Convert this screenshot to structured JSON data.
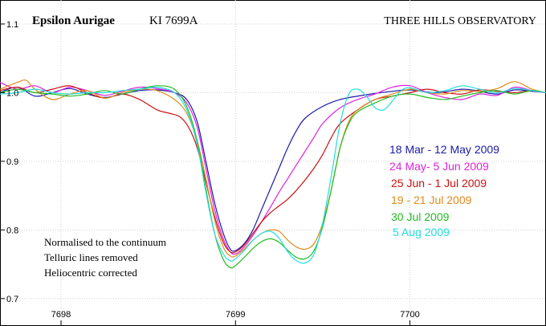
{
  "header": {
    "star": "Epsilon Aurigae",
    "line": "KI 7699A",
    "observatory": "THREE HILLS OBSERVATORY"
  },
  "notes": [
    "Normalised to the continuum",
    "Telluric lines removed",
    "Heliocentric corrected"
  ],
  "chart_data": {
    "type": "line",
    "title": "Epsilon Aurigae    KI 7699A",
    "xlim": [
      7697.65,
      7700.78
    ],
    "ylim": [
      0.66,
      1.135
    ],
    "x_ticks": [
      7698,
      7699,
      7700
    ],
    "y_ticks": [
      0.7,
      0.8,
      0.9,
      1.0,
      1.1
    ],
    "grid": true,
    "legend": "right",
    "series": [
      {
        "name": "18 Mar - 12 May  2009",
        "color": "#1a1aa8",
        "points": [
          [
            7697.65,
            1.0
          ],
          [
            7697.75,
            1.008
          ],
          [
            7697.85,
            0.995
          ],
          [
            7697.95,
            1.0
          ],
          [
            7698.05,
            1.006
          ],
          [
            7698.15,
            0.998
          ],
          [
            7698.25,
            0.993
          ],
          [
            7698.35,
            0.998
          ],
          [
            7698.45,
            1.003
          ],
          [
            7698.55,
            1.004
          ],
          [
            7698.65,
            1.0
          ],
          [
            7698.72,
            0.99
          ],
          [
            7698.78,
            0.958
          ],
          [
            7698.83,
            0.9
          ],
          [
            7698.88,
            0.84
          ],
          [
            7698.93,
            0.795
          ],
          [
            7698.97,
            0.772
          ],
          [
            7699.0,
            0.77
          ],
          [
            7699.05,
            0.78
          ],
          [
            7699.1,
            0.8
          ],
          [
            7699.15,
            0.83
          ],
          [
            7699.2,
            0.86
          ],
          [
            7699.25,
            0.89
          ],
          [
            7699.3,
            0.92
          ],
          [
            7699.35,
            0.945
          ],
          [
            7699.4,
            0.963
          ],
          [
            7699.5,
            0.98
          ],
          [
            7699.6,
            0.99
          ],
          [
            7699.75,
            0.997
          ],
          [
            7699.9,
            1.002
          ],
          [
            7700.0,
            1.004
          ],
          [
            7700.15,
            1.0
          ],
          [
            7700.3,
            1.005
          ],
          [
            7700.4,
            1.002
          ],
          [
            7700.5,
            0.998
          ],
          [
            7700.6,
            1.004
          ],
          [
            7700.7,
            1.002
          ],
          [
            7700.78,
            1.0
          ]
        ]
      },
      {
        "name": "24 May- 5 Jun 2009",
        "color": "#dd22dd",
        "points": [
          [
            7697.65,
            1.015
          ],
          [
            7697.75,
            1.005
          ],
          [
            7697.85,
            1.01
          ],
          [
            7697.95,
            1.0
          ],
          [
            7698.05,
            1.008
          ],
          [
            7698.15,
            1.003
          ],
          [
            7698.25,
            0.996
          ],
          [
            7698.35,
            1.002
          ],
          [
            7698.45,
            1.008
          ],
          [
            7698.55,
            1.006
          ],
          [
            7698.65,
            1.0
          ],
          [
            7698.72,
            0.985
          ],
          [
            7698.78,
            0.95
          ],
          [
            7698.83,
            0.89
          ],
          [
            7698.88,
            0.83
          ],
          [
            7698.93,
            0.787
          ],
          [
            7698.97,
            0.768
          ],
          [
            7699.0,
            0.765
          ],
          [
            7699.05,
            0.775
          ],
          [
            7699.1,
            0.792
          ],
          [
            7699.15,
            0.812
          ],
          [
            7699.2,
            0.833
          ],
          [
            7699.25,
            0.855
          ],
          [
            7699.3,
            0.875
          ],
          [
            7699.35,
            0.895
          ],
          [
            7699.4,
            0.915
          ],
          [
            7699.45,
            0.935
          ],
          [
            7699.5,
            0.955
          ],
          [
            7699.6,
            0.978
          ],
          [
            7699.7,
            0.99
          ],
          [
            7699.8,
            0.998
          ],
          [
            7699.9,
            1.008
          ],
          [
            7700.0,
            1.01
          ],
          [
            7700.1,
            1.0
          ],
          [
            7700.2,
            0.993
          ],
          [
            7700.3,
            0.99
          ],
          [
            7700.4,
            0.998
          ],
          [
            7700.5,
            0.996
          ],
          [
            7700.6,
            1.008
          ],
          [
            7700.7,
            1.003
          ],
          [
            7700.78,
            1.0
          ]
        ]
      },
      {
        "name": "25 Jun - 1 Jul 2009",
        "color": "#cc1111",
        "points": [
          [
            7697.65,
            1.003
          ],
          [
            7697.75,
            1.008
          ],
          [
            7697.85,
            1.0
          ],
          [
            7697.95,
            1.005
          ],
          [
            7698.05,
            1.01
          ],
          [
            7698.15,
            1.0
          ],
          [
            7698.25,
            0.992
          ],
          [
            7698.35,
            0.998
          ],
          [
            7698.45,
            0.99
          ],
          [
            7698.55,
            0.975
          ],
          [
            7698.62,
            0.97
          ],
          [
            7698.68,
            0.965
          ],
          [
            7698.73,
            0.95
          ],
          [
            7698.78,
            0.92
          ],
          [
            7698.83,
            0.87
          ],
          [
            7698.88,
            0.82
          ],
          [
            7698.93,
            0.782
          ],
          [
            7698.97,
            0.768
          ],
          [
            7699.0,
            0.768
          ],
          [
            7699.05,
            0.778
          ],
          [
            7699.1,
            0.795
          ],
          [
            7699.15,
            0.812
          ],
          [
            7699.2,
            0.825
          ],
          [
            7699.25,
            0.835
          ],
          [
            7699.3,
            0.845
          ],
          [
            7699.35,
            0.858
          ],
          [
            7699.4,
            0.873
          ],
          [
            7699.45,
            0.89
          ],
          [
            7699.5,
            0.91
          ],
          [
            7699.55,
            0.935
          ],
          [
            7699.6,
            0.955
          ],
          [
            7699.7,
            0.975
          ],
          [
            7699.8,
            0.99
          ],
          [
            7699.9,
            0.995
          ],
          [
            7700.0,
            1.0
          ],
          [
            7700.1,
            1.005
          ],
          [
            7700.2,
            1.0
          ],
          [
            7700.3,
            0.998
          ],
          [
            7700.4,
            1.004
          ],
          [
            7700.5,
            1.002
          ],
          [
            7700.6,
            1.0
          ],
          [
            7700.7,
            1.003
          ],
          [
            7700.78,
            1.0
          ]
        ]
      },
      {
        "name": "19 - 21 Jul 2009",
        "color": "#e08a1a",
        "points": [
          [
            7697.65,
            1.005
          ],
          [
            7697.75,
            1.015
          ],
          [
            7697.8,
            1.018
          ],
          [
            7697.85,
            1.005
          ],
          [
            7697.95,
            0.99
          ],
          [
            7698.05,
            0.998
          ],
          [
            7698.15,
            1.003
          ],
          [
            7698.25,
            0.992
          ],
          [
            7698.35,
            1.0
          ],
          [
            7698.45,
            1.005
          ],
          [
            7698.55,
            1.003
          ],
          [
            7698.65,
            0.99
          ],
          [
            7698.72,
            0.97
          ],
          [
            7698.78,
            0.93
          ],
          [
            7698.83,
            0.875
          ],
          [
            7698.88,
            0.815
          ],
          [
            7698.93,
            0.775
          ],
          [
            7698.97,
            0.762
          ],
          [
            7699.0,
            0.762
          ],
          [
            7699.05,
            0.772
          ],
          [
            7699.1,
            0.785
          ],
          [
            7699.15,
            0.795
          ],
          [
            7699.2,
            0.8
          ],
          [
            7699.25,
            0.798
          ],
          [
            7699.3,
            0.785
          ],
          [
            7699.35,
            0.775
          ],
          [
            7699.4,
            0.772
          ],
          [
            7699.45,
            0.78
          ],
          [
            7699.5,
            0.81
          ],
          [
            7699.55,
            0.86
          ],
          [
            7699.6,
            0.92
          ],
          [
            7699.65,
            0.958
          ],
          [
            7699.7,
            0.975
          ],
          [
            7699.8,
            0.99
          ],
          [
            7699.9,
            0.998
          ],
          [
            7700.0,
            1.005
          ],
          [
            7700.1,
            1.0
          ],
          [
            7700.2,
            0.998
          ],
          [
            7700.3,
            1.003
          ],
          [
            7700.4,
            1.002
          ],
          [
            7700.5,
            1.006
          ],
          [
            7700.6,
            1.016
          ],
          [
            7700.7,
            1.005
          ],
          [
            7700.78,
            1.0
          ]
        ]
      },
      {
        "name": "30  Jul 2009",
        "color": "#22bb22",
        "points": [
          [
            7697.65,
            1.0
          ],
          [
            7697.75,
            1.005
          ],
          [
            7697.85,
            1.0
          ],
          [
            7697.95,
            0.998
          ],
          [
            7698.05,
            0.995
          ],
          [
            7698.15,
            0.998
          ],
          [
            7698.25,
            1.003
          ],
          [
            7698.35,
            0.998
          ],
          [
            7698.45,
            1.005
          ],
          [
            7698.55,
            1.01
          ],
          [
            7698.65,
            1.005
          ],
          [
            7698.72,
            0.98
          ],
          [
            7698.78,
            0.93
          ],
          [
            7698.83,
            0.86
          ],
          [
            7698.88,
            0.795
          ],
          [
            7698.93,
            0.757
          ],
          [
            7698.97,
            0.745
          ],
          [
            7699.0,
            0.748
          ],
          [
            7699.05,
            0.76
          ],
          [
            7699.1,
            0.773
          ],
          [
            7699.15,
            0.783
          ],
          [
            7699.2,
            0.787
          ],
          [
            7699.25,
            0.782
          ],
          [
            7699.3,
            0.77
          ],
          [
            7699.35,
            0.76
          ],
          [
            7699.4,
            0.758
          ],
          [
            7699.45,
            0.77
          ],
          [
            7699.5,
            0.805
          ],
          [
            7699.55,
            0.86
          ],
          [
            7699.6,
            0.92
          ],
          [
            7699.65,
            0.955
          ],
          [
            7699.7,
            0.972
          ],
          [
            7699.8,
            0.985
          ],
          [
            7699.9,
            0.995
          ],
          [
            7700.0,
            0.998
          ],
          [
            7700.1,
            0.993
          ],
          [
            7700.2,
            0.99
          ],
          [
            7700.3,
            0.995
          ],
          [
            7700.4,
            1.0
          ],
          [
            7700.5,
            1.003
          ],
          [
            7700.6,
            0.998
          ],
          [
            7700.7,
            1.003
          ],
          [
            7700.78,
            1.0
          ]
        ]
      },
      {
        "name": "5 Aug 2009",
        "color": "#22dddd",
        "points": [
          [
            7697.65,
            0.998
          ],
          [
            7697.75,
            1.0
          ],
          [
            7697.85,
            1.005
          ],
          [
            7697.95,
            1.0
          ],
          [
            7698.05,
            0.998
          ],
          [
            7698.15,
            1.0
          ],
          [
            7698.25,
            1.0
          ],
          [
            7698.35,
            1.003
          ],
          [
            7698.45,
            1.005
          ],
          [
            7698.55,
            1.008
          ],
          [
            7698.65,
            1.0
          ],
          [
            7698.72,
            0.975
          ],
          [
            7698.78,
            0.925
          ],
          [
            7698.83,
            0.855
          ],
          [
            7698.88,
            0.795
          ],
          [
            7698.93,
            0.765
          ],
          [
            7698.97,
            0.755
          ],
          [
            7699.0,
            0.758
          ],
          [
            7699.05,
            0.77
          ],
          [
            7699.1,
            0.785
          ],
          [
            7699.15,
            0.795
          ],
          [
            7699.2,
            0.798
          ],
          [
            7699.25,
            0.788
          ],
          [
            7699.3,
            0.768
          ],
          [
            7699.35,
            0.755
          ],
          [
            7699.4,
            0.752
          ],
          [
            7699.45,
            0.765
          ],
          [
            7699.5,
            0.81
          ],
          [
            7699.55,
            0.88
          ],
          [
            7699.6,
            0.955
          ],
          [
            7699.65,
            0.998
          ],
          [
            7699.7,
            1.005
          ],
          [
            7699.75,
            0.995
          ],
          [
            7699.8,
            0.978
          ],
          [
            7699.85,
            0.975
          ],
          [
            7699.9,
            0.988
          ],
          [
            7699.95,
            1.003
          ],
          [
            7700.0,
            1.007
          ],
          [
            7700.1,
            1.0
          ],
          [
            7700.2,
            1.003
          ],
          [
            7700.3,
            1.01
          ],
          [
            7700.4,
            1.005
          ],
          [
            7700.5,
            1.0
          ],
          [
            7700.6,
            1.006
          ],
          [
            7700.7,
            1.003
          ],
          [
            7700.78,
            1.0
          ]
        ]
      }
    ]
  }
}
